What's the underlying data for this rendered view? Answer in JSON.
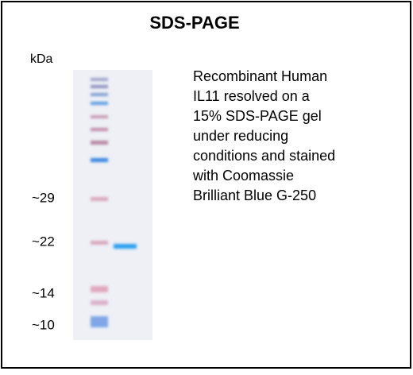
{
  "header": {
    "title": "SDS-PAGE"
  },
  "gel": {
    "unit_label": "kDa",
    "markers": [
      "~29",
      "~22",
      "~14",
      "~10"
    ]
  },
  "description": {
    "lines": [
      "Recombinant Human",
      "IL11 resolved  on a",
      "15% SDS-PAGE gel",
      "under reducing",
      "conditions and stained",
      "with Coomassie",
      "Brilliant Blue G-250"
    ]
  }
}
